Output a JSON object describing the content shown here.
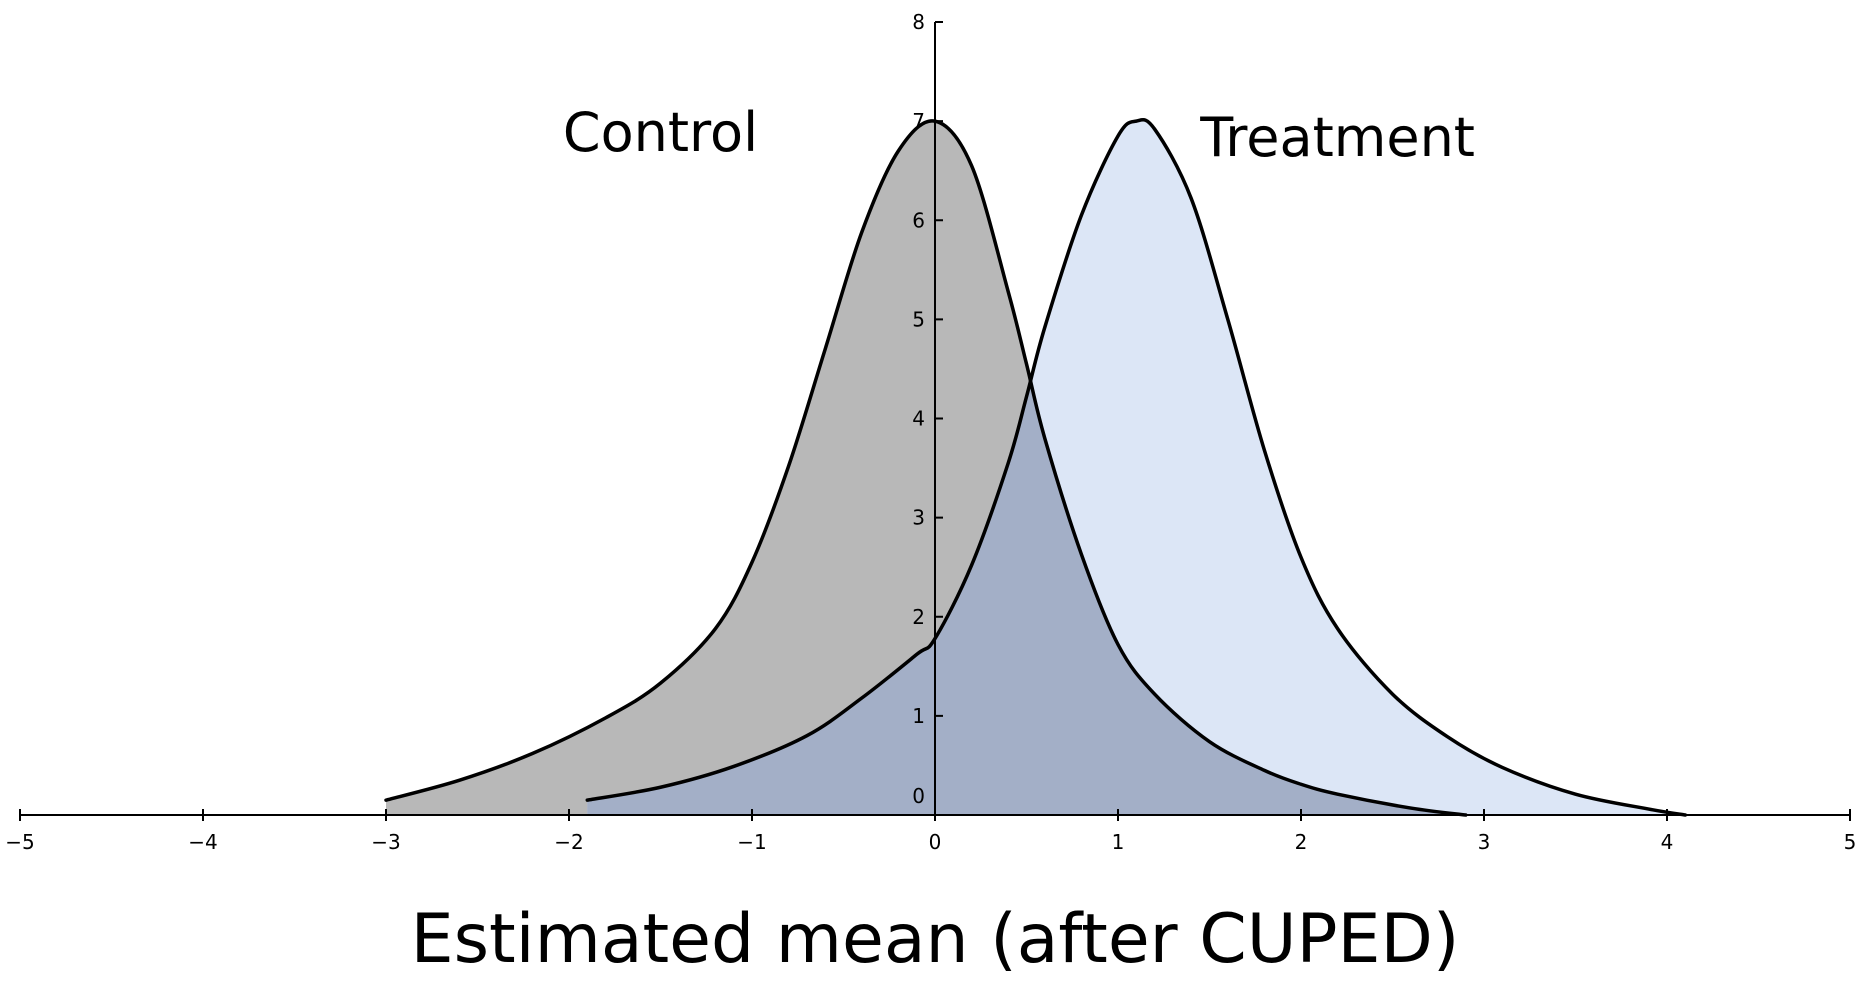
{
  "chart_data": {
    "type": "area",
    "title": "",
    "xlabel": "Estimated mean (after CUPED)",
    "ylabel": "",
    "xlim": [
      -5,
      5
    ],
    "ylim": [
      0,
      8
    ],
    "x_ticks": [
      -5,
      -4,
      -3,
      -2,
      -1,
      0,
      1,
      2,
      3,
      4,
      5
    ],
    "x_tick_labels": [
      "−5",
      "−4",
      "−3",
      "−2",
      "−1",
      "0",
      "1",
      "2",
      "3",
      "4",
      "5"
    ],
    "y_ticks": [
      0,
      1,
      2,
      3,
      4,
      5,
      6,
      7,
      8
    ],
    "y_tick_labels": [
      "0",
      "1",
      "2",
      "3",
      "4",
      "5",
      "6",
      "7",
      "8"
    ],
    "grid": false,
    "legend": "none",
    "series": [
      {
        "name": "Control",
        "color": "#b8b8b8",
        "line_color": "#000000",
        "x": [
          -3.0,
          -2.6,
          -2.2,
          -1.8,
          -1.5,
          -1.2,
          -1.0,
          -0.8,
          -0.6,
          -0.4,
          -0.2,
          0.0,
          0.2,
          0.4,
          0.5,
          0.6,
          0.8,
          1.0,
          1.2,
          1.5,
          1.8,
          2.0,
          2.2,
          2.6,
          2.9
        ],
        "y": [
          0.15,
          0.35,
          0.62,
          0.98,
          1.33,
          1.88,
          2.55,
          3.52,
          4.7,
          5.88,
          6.7,
          7.0,
          6.55,
          5.28,
          4.55,
          3.8,
          2.63,
          1.72,
          1.22,
          0.74,
          0.45,
          0.31,
          0.21,
          0.07,
          0.0
        ]
      },
      {
        "name": "Treatment",
        "color": "#cfdcf2",
        "line_color": "#000000",
        "x": [
          -1.9,
          -1.5,
          -1.1,
          -0.7,
          -0.4,
          -0.1,
          0.0,
          0.2,
          0.4,
          0.5,
          0.6,
          0.8,
          1.0,
          1.1,
          1.2,
          1.4,
          1.6,
          1.8,
          2.0,
          2.2,
          2.5,
          2.8,
          3.1,
          3.5,
          3.9,
          4.1
        ],
        "y": [
          0.15,
          0.28,
          0.49,
          0.8,
          1.18,
          1.62,
          1.78,
          2.52,
          3.55,
          4.22,
          4.92,
          6.05,
          6.85,
          7.0,
          6.92,
          6.22,
          5.0,
          3.68,
          2.6,
          1.88,
          1.22,
          0.79,
          0.48,
          0.21,
          0.06,
          0.0
        ]
      }
    ],
    "annotations": [
      {
        "text": "Control",
        "x": -1.5,
        "y": 6.7
      },
      {
        "text": "Treatment",
        "x": 2.2,
        "y": 6.65
      }
    ]
  }
}
